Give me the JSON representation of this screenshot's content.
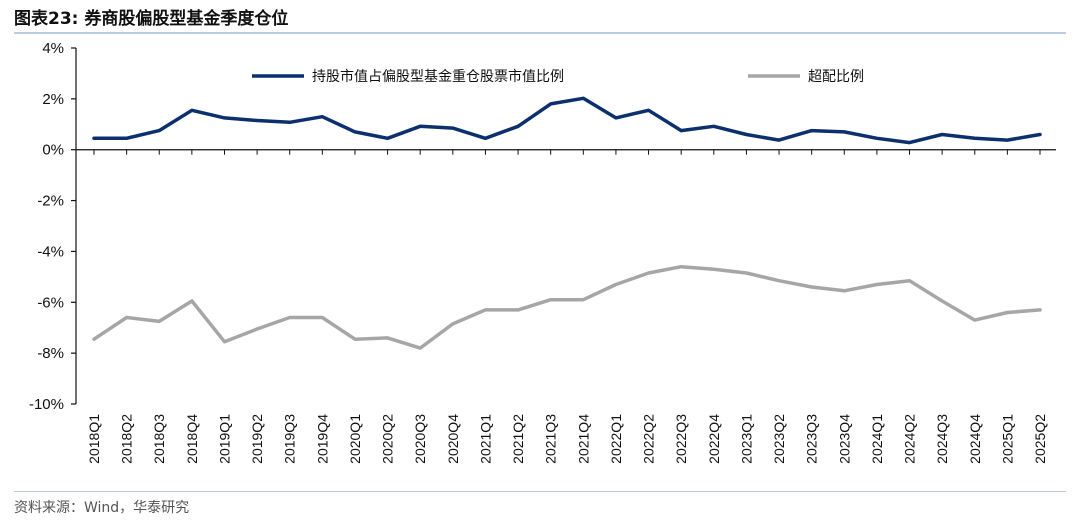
{
  "figure": {
    "title": "图表23:  券商股偏股型基金季度仓位",
    "source": "资料来源：Wind，华泰研究"
  },
  "chart_data": {
    "type": "line",
    "x": [
      "2018Q1",
      "2018Q2",
      "2018Q3",
      "2018Q4",
      "2019Q1",
      "2019Q2",
      "2019Q3",
      "2019Q4",
      "2020Q1",
      "2020Q2",
      "2020Q3",
      "2020Q4",
      "2021Q1",
      "2021Q2",
      "2021Q3",
      "2021Q4",
      "2022Q1",
      "2022Q2",
      "2022Q3",
      "2022Q4",
      "2023Q1",
      "2023Q2",
      "2023Q3",
      "2023Q4",
      "2024Q1",
      "2024Q2",
      "2024Q3",
      "2024Q4",
      "2025Q1",
      "2025Q2"
    ],
    "series": [
      {
        "name": "持股市值占偏股型基金重仓股票市值比例",
        "color": "#0c2f6e",
        "values": [
          0.45,
          0.45,
          0.75,
          1.55,
          1.25,
          1.15,
          1.08,
          1.3,
          0.7,
          0.45,
          0.92,
          0.85,
          0.45,
          0.92,
          1.8,
          2.02,
          1.25,
          1.55,
          0.75,
          0.92,
          0.6,
          0.38,
          0.75,
          0.7,
          0.45,
          0.28,
          0.6,
          0.45,
          0.38,
          0.6
        ]
      },
      {
        "name": "超配比例",
        "color": "#a6a6a6",
        "values": [
          -7.45,
          -6.6,
          -6.75,
          -5.95,
          -7.55,
          -7.05,
          -6.6,
          -6.6,
          -7.45,
          -7.4,
          -7.8,
          -6.85,
          -6.3,
          -6.3,
          -5.9,
          -5.9,
          -5.3,
          -4.85,
          -4.6,
          -4.7,
          -4.85,
          -5.15,
          -5.4,
          -5.55,
          -5.3,
          -5.15,
          -5.95,
          -6.7,
          -6.4,
          -6.3
        ]
      }
    ],
    "y_ticks": [
      "4%",
      "2%",
      "0%",
      "-2%",
      "-4%",
      "-6%",
      "-8%",
      "-10%"
    ],
    "ylim": [
      -10,
      4
    ],
    "y_unit": "%",
    "grid": false,
    "legend_position": "top"
  }
}
